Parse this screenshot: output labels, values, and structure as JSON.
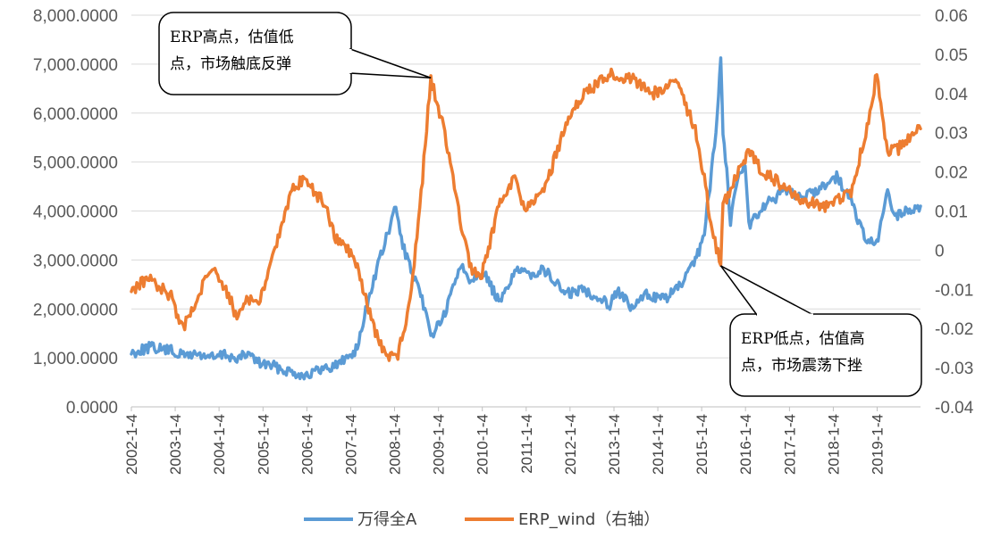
{
  "chart_data": {
    "type": "line",
    "title": "",
    "y_left": {
      "lim": [
        0,
        8000
      ],
      "ticks": [
        "0.0000",
        "1,000.0000",
        "2,000.0000",
        "3,000.0000",
        "4,000.0000",
        "5,000.0000",
        "6,000.0000",
        "7,000.0000",
        "8,000.0000"
      ]
    },
    "y_right": {
      "lim": [
        -0.04,
        0.06
      ],
      "ticks": [
        "-0.04",
        "-0.03",
        "-0.02",
        "-0.01",
        "0",
        "0.01",
        "0.02",
        "0.03",
        "0.04",
        "0.05",
        "0.06"
      ]
    },
    "x_range": [
      "2002-01-04",
      "2019-12-31"
    ],
    "x_ticks": [
      "2002-1-4",
      "2003-1-4",
      "2004-1-4",
      "2005-1-4",
      "2006-1-4",
      "2007-1-4",
      "2008-1-4",
      "2009-1-4",
      "2010-1-4",
      "2011-1-4",
      "2012-1-4",
      "2013-1-4",
      "2014-1-4",
      "2015-1-4",
      "2016-1-4",
      "2017-1-4",
      "2018-1-4",
      "2019-1-4"
    ],
    "grid": true,
    "legend_position": "bottom",
    "series": [
      {
        "name": "万得全A",
        "axis": "left",
        "color": "#5b9bd5",
        "points": [
          [
            "2002-01-04",
            1100
          ],
          [
            "2002-06-01",
            1220
          ],
          [
            "2002-12-01",
            1150
          ],
          [
            "2003-03-01",
            1050
          ],
          [
            "2003-06-01",
            1080
          ],
          [
            "2003-09-01",
            1050
          ],
          [
            "2003-12-01",
            1000
          ],
          [
            "2004-03-01",
            1080
          ],
          [
            "2004-06-01",
            950
          ],
          [
            "2004-09-01",
            1100
          ],
          [
            "2004-12-01",
            900
          ],
          [
            "2005-03-01",
            850
          ],
          [
            "2005-06-01",
            780
          ],
          [
            "2005-09-01",
            720
          ],
          [
            "2005-12-01",
            650
          ],
          [
            "2006-03-01",
            700
          ],
          [
            "2006-06-01",
            780
          ],
          [
            "2006-09-01",
            850
          ],
          [
            "2006-12-01",
            1000
          ],
          [
            "2007-03-01",
            1200
          ],
          [
            "2007-06-01",
            2200
          ],
          [
            "2007-09-01",
            3000
          ],
          [
            "2007-12-01",
            3700
          ],
          [
            "2008-01-15",
            4100
          ],
          [
            "2008-03-01",
            3400
          ],
          [
            "2008-06-01",
            2700
          ],
          [
            "2008-09-01",
            2100
          ],
          [
            "2008-11-01",
            1450
          ],
          [
            "2009-03-01",
            1900
          ],
          [
            "2009-07-01",
            2900
          ],
          [
            "2009-10-01",
            2600
          ],
          [
            "2010-01-01",
            2800
          ],
          [
            "2010-06-01",
            2100
          ],
          [
            "2010-10-01",
            2800
          ],
          [
            "2011-01-01",
            2700
          ],
          [
            "2011-06-01",
            2800
          ],
          [
            "2011-12-01",
            2300
          ],
          [
            "2012-05-01",
            2400
          ],
          [
            "2012-12-01",
            2100
          ],
          [
            "2013-02-01",
            2400
          ],
          [
            "2013-06-01",
            2000
          ],
          [
            "2013-10-01",
            2300
          ],
          [
            "2014-03-01",
            2200
          ],
          [
            "2014-07-01",
            2450
          ],
          [
            "2014-11-01",
            2900
          ],
          [
            "2015-01-15",
            3400
          ],
          [
            "2015-03-15",
            4500
          ],
          [
            "2015-05-15",
            6000
          ],
          [
            "2015-06-12",
            7200
          ],
          [
            "2015-07-01",
            5600
          ],
          [
            "2015-08-01",
            4800
          ],
          [
            "2015-09-01",
            3800
          ],
          [
            "2015-11-01",
            4700
          ],
          [
            "2016-01-01",
            5000
          ],
          [
            "2016-02-01",
            3700
          ],
          [
            "2016-06-01",
            4100
          ],
          [
            "2016-12-01",
            4400
          ],
          [
            "2017-06-01",
            4300
          ],
          [
            "2017-12-01",
            4600
          ],
          [
            "2018-02-01",
            4700
          ],
          [
            "2018-06-01",
            4200
          ],
          [
            "2018-10-01",
            3400
          ],
          [
            "2019-01-01",
            3300
          ],
          [
            "2019-04-01",
            4400
          ],
          [
            "2019-06-01",
            3900
          ],
          [
            "2019-10-01",
            4000
          ],
          [
            "2019-12-31",
            4100
          ]
        ]
      },
      {
        "name": "ERP_wind（右轴）",
        "axis": "right",
        "color": "#ed7d31",
        "points": [
          [
            "2002-01-04",
            -0.01
          ],
          [
            "2002-06-01",
            -0.007
          ],
          [
            "2002-12-01",
            -0.012
          ],
          [
            "2003-03-01",
            -0.02
          ],
          [
            "2003-06-01",
            -0.015
          ],
          [
            "2003-09-01",
            -0.008
          ],
          [
            "2003-12-01",
            -0.005
          ],
          [
            "2004-03-01",
            -0.01
          ],
          [
            "2004-06-01",
            -0.017
          ],
          [
            "2004-09-01",
            -0.012
          ],
          [
            "2004-12-01",
            -0.014
          ],
          [
            "2005-03-01",
            -0.004
          ],
          [
            "2005-06-01",
            0.005
          ],
          [
            "2005-09-01",
            0.015
          ],
          [
            "2005-12-01",
            0.018
          ],
          [
            "2006-03-01",
            0.015
          ],
          [
            "2006-06-01",
            0.012
          ],
          [
            "2006-09-01",
            0.003
          ],
          [
            "2006-12-01",
            0.001
          ],
          [
            "2007-03-01",
            -0.004
          ],
          [
            "2007-06-01",
            -0.015
          ],
          [
            "2007-09-01",
            -0.024
          ],
          [
            "2007-12-01",
            -0.027
          ],
          [
            "2008-02-01",
            -0.027
          ],
          [
            "2008-05-01",
            -0.015
          ],
          [
            "2008-08-01",
            0.01
          ],
          [
            "2008-11-01",
            0.044
          ],
          [
            "2009-01-01",
            0.037
          ],
          [
            "2009-04-01",
            0.025
          ],
          [
            "2009-07-01",
            0.008
          ],
          [
            "2009-10-01",
            -0.005
          ],
          [
            "2010-01-01",
            -0.006
          ],
          [
            "2010-06-01",
            0.012
          ],
          [
            "2010-10-01",
            0.018
          ],
          [
            "2011-01-01",
            0.01
          ],
          [
            "2011-06-01",
            0.015
          ],
          [
            "2011-12-01",
            0.032
          ],
          [
            "2012-05-01",
            0.04
          ],
          [
            "2012-12-01",
            0.045
          ],
          [
            "2013-06-01",
            0.044
          ],
          [
            "2013-12-01",
            0.04
          ],
          [
            "2014-06-01",
            0.043
          ],
          [
            "2014-11-01",
            0.032
          ],
          [
            "2015-01-15",
            0.02
          ],
          [
            "2015-04-01",
            0.005
          ],
          [
            "2015-06-12",
            -0.004
          ],
          [
            "2015-07-01",
            0.012
          ],
          [
            "2015-09-01",
            0.015
          ],
          [
            "2015-12-01",
            0.022
          ],
          [
            "2016-02-01",
            0.025
          ],
          [
            "2016-06-01",
            0.02
          ],
          [
            "2016-12-01",
            0.016
          ],
          [
            "2017-06-01",
            0.012
          ],
          [
            "2017-12-01",
            0.011
          ],
          [
            "2018-06-01",
            0.015
          ],
          [
            "2018-10-01",
            0.03
          ],
          [
            "2019-01-01",
            0.045
          ],
          [
            "2019-04-01",
            0.025
          ],
          [
            "2019-07-01",
            0.026
          ],
          [
            "2019-12-31",
            0.031
          ]
        ]
      }
    ],
    "annotations": [
      {
        "lines": [
          "ERP高点，估值低",
          "点，市场触底反弹"
        ],
        "target": [
          "2008-11-01",
          0.044
        ]
      },
      {
        "lines": [
          "ERP低点，估值高",
          "点，市场震荡下挫"
        ],
        "target": [
          "2015-06-12",
          -0.004
        ]
      }
    ]
  },
  "legend": {
    "items": [
      {
        "label": "万得全A",
        "color": "#5b9bd5"
      },
      {
        "label": "ERP_wind（右轴）",
        "color": "#ed7d31"
      }
    ]
  }
}
